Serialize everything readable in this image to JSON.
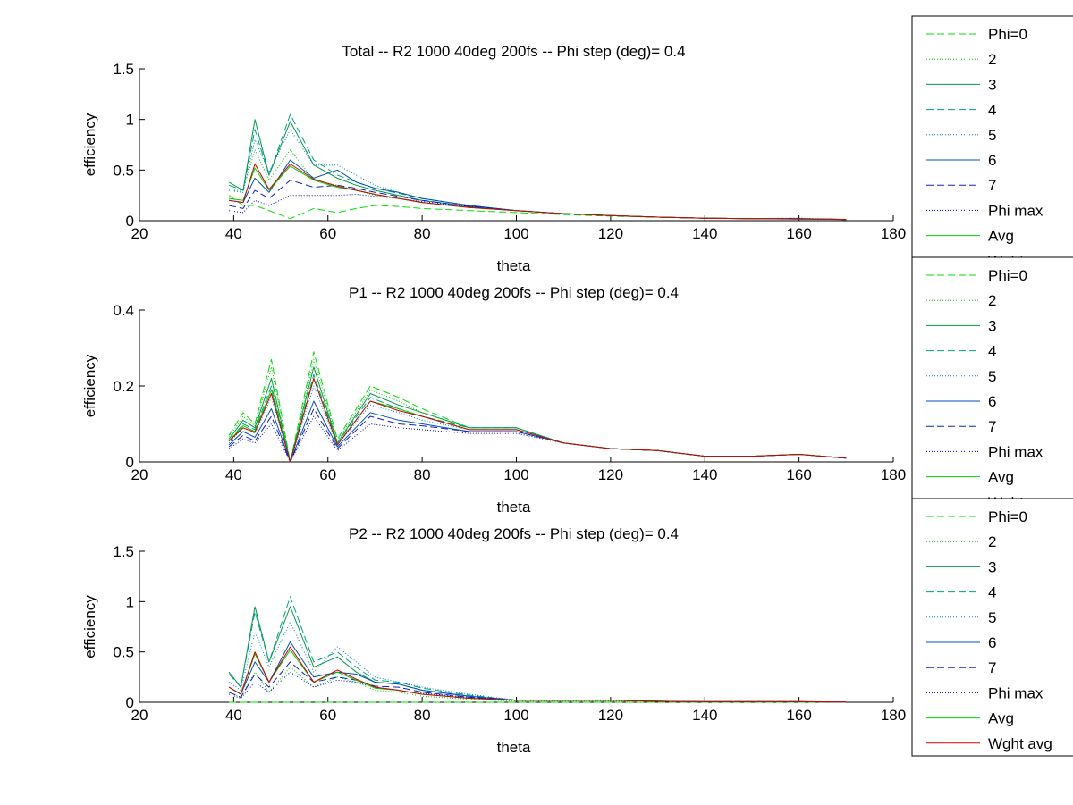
{
  "legend_entries": [
    {
      "label": "Phi=0",
      "color": "#00e000",
      "dash": "8 4"
    },
    {
      "label": "2",
      "color": "#00c000",
      "dash": "1 2"
    },
    {
      "label": "3",
      "color": "#009a40",
      "dash": ""
    },
    {
      "label": "4",
      "color": "#00a080",
      "dash": "8 4"
    },
    {
      "label": "5",
      "color": "#0080c0",
      "dash": "1 2"
    },
    {
      "label": "6",
      "color": "#0050c0",
      "dash": ""
    },
    {
      "label": "7",
      "color": "#1020c0",
      "dash": "8 4"
    },
    {
      "label": "Phi max",
      "color": "#0000d0",
      "dash": "1 2"
    },
    {
      "label": "Avg",
      "color": "#00d000",
      "dash": ""
    },
    {
      "label": "Wght avg",
      "color": "#d00000",
      "dash": ""
    }
  ],
  "chart_data": [
    {
      "type": "line",
      "title": "Total -- R2 1000 40deg 200fs -- Phi step (deg)= 0.4",
      "xlabel": "theta",
      "ylabel": "efficiency",
      "xlim": [
        20,
        180
      ],
      "ylim": [
        0,
        1.5
      ],
      "xticks": [
        "20",
        "40",
        "60",
        "80",
        "100",
        "120",
        "140",
        "160",
        "180"
      ],
      "yticks": [
        "0",
        "0.5",
        "1",
        "1.5"
      ],
      "grid": false,
      "legend_position": "outside-right",
      "x": [
        39,
        42,
        44.5,
        47.5,
        52,
        57,
        62,
        66,
        70,
        75,
        80,
        90,
        100,
        110,
        120,
        130,
        140,
        150,
        160,
        170
      ],
      "series": [
        {
          "name": "Phi=0",
          "values": [
            0.25,
            0.15,
            0.15,
            0.1,
            0.02,
            0.12,
            0.08,
            0.12,
            0.15,
            0.14,
            0.12,
            0.1,
            0.08,
            0.06,
            0.045,
            0.035,
            0.025,
            0.02,
            0.015,
            0.012
          ]
        },
        {
          "name": "2",
          "values": [
            0.3,
            0.3,
            0.7,
            0.4,
            0.7,
            0.4,
            0.35,
            0.3,
            0.25,
            0.22,
            0.18,
            0.13,
            0.1,
            0.07,
            0.05,
            0.035,
            0.025,
            0.02,
            0.018,
            0.012
          ]
        },
        {
          "name": "3",
          "values": [
            0.38,
            0.3,
            1.0,
            0.45,
            0.98,
            0.55,
            0.42,
            0.35,
            0.3,
            0.25,
            0.2,
            0.14,
            0.1,
            0.07,
            0.05,
            0.035,
            0.025,
            0.02,
            0.015,
            0.012
          ]
        },
        {
          "name": "4",
          "values": [
            0.35,
            0.3,
            0.9,
            0.45,
            1.05,
            0.6,
            0.45,
            0.38,
            0.32,
            0.27,
            0.22,
            0.15,
            0.1,
            0.07,
            0.05,
            0.035,
            0.025,
            0.02,
            0.02,
            0.012
          ]
        },
        {
          "name": "5",
          "values": [
            0.3,
            0.28,
            0.8,
            0.48,
            0.9,
            0.55,
            0.55,
            0.45,
            0.35,
            0.28,
            0.22,
            0.15,
            0.1,
            0.07,
            0.05,
            0.035,
            0.025,
            0.02,
            0.02,
            0.012
          ]
        },
        {
          "name": "6",
          "values": [
            0.2,
            0.18,
            0.42,
            0.28,
            0.6,
            0.42,
            0.5,
            0.38,
            0.32,
            0.28,
            0.22,
            0.15,
            0.1,
            0.07,
            0.05,
            0.035,
            0.025,
            0.02,
            0.02,
            0.012
          ]
        },
        {
          "name": "7",
          "values": [
            0.15,
            0.12,
            0.3,
            0.22,
            0.4,
            0.33,
            0.35,
            0.32,
            0.28,
            0.24,
            0.2,
            0.14,
            0.1,
            0.07,
            0.05,
            0.035,
            0.025,
            0.02,
            0.02,
            0.012
          ]
        },
        {
          "name": "Phi max",
          "values": [
            0.1,
            0.08,
            0.2,
            0.15,
            0.25,
            0.25,
            0.25,
            0.26,
            0.24,
            0.22,
            0.19,
            0.14,
            0.1,
            0.07,
            0.05,
            0.035,
            0.025,
            0.02,
            0.025,
            0.012
          ]
        },
        {
          "name": "Avg",
          "values": [
            0.22,
            0.2,
            0.52,
            0.3,
            0.54,
            0.4,
            0.33,
            0.3,
            0.26,
            0.22,
            0.18,
            0.13,
            0.1,
            0.07,
            0.05,
            0.035,
            0.025,
            0.02,
            0.018,
            0.012
          ]
        },
        {
          "name": "Wght avg",
          "values": [
            0.2,
            0.18,
            0.56,
            0.31,
            0.56,
            0.41,
            0.34,
            0.3,
            0.26,
            0.22,
            0.18,
            0.13,
            0.1,
            0.07,
            0.05,
            0.035,
            0.025,
            0.02,
            0.018,
            0.012
          ]
        }
      ]
    },
    {
      "type": "line",
      "title": "P1 -- R2 1000 40deg 200fs -- Phi step (deg)= 0.4",
      "xlabel": "theta",
      "ylabel": "efficiency",
      "xlim": [
        20,
        180
      ],
      "ylim": [
        0,
        0.4
      ],
      "xticks": [
        "20",
        "40",
        "60",
        "80",
        "100",
        "120",
        "140",
        "160",
        "180"
      ],
      "yticks": [
        "0",
        "0.2",
        "0.4"
      ],
      "grid": false,
      "legend_position": "outside-right",
      "x": [
        39,
        42,
        44.5,
        48,
        52,
        57,
        62,
        69,
        75,
        80,
        90,
        100,
        110,
        120,
        130,
        140,
        150,
        160,
        170
      ],
      "series": [
        {
          "name": "Phi=0",
          "values": [
            0.07,
            0.13,
            0.1,
            0.27,
            0.0,
            0.29,
            0.06,
            0.2,
            0.17,
            0.14,
            0.09,
            0.09,
            0.05,
            0.035,
            0.03,
            0.015,
            0.015,
            0.02,
            0.01
          ]
        },
        {
          "name": "2",
          "values": [
            0.065,
            0.12,
            0.095,
            0.25,
            0.0,
            0.27,
            0.055,
            0.19,
            0.16,
            0.13,
            0.09,
            0.09,
            0.05,
            0.035,
            0.03,
            0.015,
            0.015,
            0.02,
            0.01
          ]
        },
        {
          "name": "3",
          "values": [
            0.06,
            0.11,
            0.09,
            0.22,
            0.0,
            0.25,
            0.05,
            0.18,
            0.15,
            0.13,
            0.09,
            0.09,
            0.05,
            0.035,
            0.03,
            0.015,
            0.015,
            0.02,
            0.01
          ]
        },
        {
          "name": "4",
          "values": [
            0.055,
            0.1,
            0.085,
            0.2,
            0.0,
            0.23,
            0.05,
            0.17,
            0.14,
            0.12,
            0.09,
            0.09,
            0.05,
            0.035,
            0.03,
            0.015,
            0.015,
            0.02,
            0.01
          ]
        },
        {
          "name": "5",
          "values": [
            0.05,
            0.09,
            0.075,
            0.17,
            0.0,
            0.2,
            0.045,
            0.15,
            0.13,
            0.11,
            0.085,
            0.085,
            0.05,
            0.035,
            0.03,
            0.015,
            0.015,
            0.02,
            0.01
          ]
        },
        {
          "name": "6",
          "values": [
            0.045,
            0.08,
            0.065,
            0.14,
            0.0,
            0.16,
            0.04,
            0.13,
            0.11,
            0.1,
            0.08,
            0.08,
            0.05,
            0.035,
            0.03,
            0.015,
            0.015,
            0.02,
            0.01
          ]
        },
        {
          "name": "7",
          "values": [
            0.04,
            0.07,
            0.055,
            0.12,
            0.0,
            0.14,
            0.035,
            0.12,
            0.1,
            0.095,
            0.08,
            0.08,
            0.05,
            0.035,
            0.03,
            0.015,
            0.015,
            0.02,
            0.01
          ]
        },
        {
          "name": "Phi max",
          "values": [
            0.035,
            0.06,
            0.05,
            0.1,
            0.0,
            0.12,
            0.03,
            0.1,
            0.09,
            0.085,
            0.075,
            0.075,
            0.05,
            0.035,
            0.03,
            0.015,
            0.015,
            0.02,
            0.01
          ]
        },
        {
          "name": "Avg",
          "values": [
            0.055,
            0.095,
            0.08,
            0.19,
            0.0,
            0.22,
            0.045,
            0.16,
            0.14,
            0.12,
            0.085,
            0.085,
            0.05,
            0.035,
            0.03,
            0.015,
            0.015,
            0.02,
            0.01
          ]
        },
        {
          "name": "Wght avg",
          "values": [
            0.055,
            0.09,
            0.078,
            0.18,
            0.0,
            0.22,
            0.045,
            0.16,
            0.135,
            0.12,
            0.085,
            0.085,
            0.05,
            0.035,
            0.03,
            0.015,
            0.015,
            0.02,
            0.01
          ]
        }
      ]
    },
    {
      "type": "line",
      "title": "P2 -- R2 1000 40deg 200fs -- Phi step (deg)= 0.4",
      "xlabel": "theta",
      "ylabel": "efficiency",
      "xlim": [
        20,
        180
      ],
      "ylim": [
        0,
        1.5
      ],
      "xticks": [
        "20",
        "40",
        "60",
        "80",
        "100",
        "120",
        "140",
        "160",
        "180"
      ],
      "yticks": [
        "0",
        "0.5",
        "1",
        "1.5"
      ],
      "grid": false,
      "legend_position": "outside-right",
      "x": [
        39,
        41.5,
        44.5,
        47.5,
        52,
        57,
        62,
        66,
        70,
        75,
        80,
        90,
        100,
        110,
        120,
        130,
        140,
        150,
        160,
        170
      ],
      "series": [
        {
          "name": "Phi=0",
          "values": [
            0.0,
            0.0,
            0.0,
            0.0,
            0.0,
            0.0,
            0.0,
            0.0,
            0.0,
            0.0,
            0.0,
            0.0,
            0.0,
            0.0,
            0.0,
            0.0,
            0.0,
            0.0,
            0.0,
            0.0
          ]
        },
        {
          "name": "2",
          "values": [
            0.1,
            0.05,
            0.3,
            0.1,
            0.35,
            0.15,
            0.25,
            0.2,
            0.12,
            0.1,
            0.06,
            0.03,
            0.01,
            0.01,
            0.01,
            0.005,
            0.005,
            0.005,
            0.005,
            0.002
          ]
        },
        {
          "name": "3",
          "values": [
            0.3,
            0.15,
            0.95,
            0.4,
            0.95,
            0.35,
            0.45,
            0.3,
            0.2,
            0.18,
            0.12,
            0.06,
            0.02,
            0.02,
            0.02,
            0.01,
            0.005,
            0.005,
            0.005,
            0.002
          ]
        },
        {
          "name": "4",
          "values": [
            0.28,
            0.15,
            0.9,
            0.4,
            1.05,
            0.4,
            0.5,
            0.35,
            0.22,
            0.2,
            0.14,
            0.07,
            0.02,
            0.02,
            0.02,
            0.01,
            0.005,
            0.005,
            0.005,
            0.002
          ]
        },
        {
          "name": "5",
          "values": [
            0.2,
            0.12,
            0.7,
            0.35,
            0.8,
            0.3,
            0.55,
            0.4,
            0.25,
            0.2,
            0.15,
            0.08,
            0.02,
            0.02,
            0.02,
            0.01,
            0.005,
            0.005,
            0.005,
            0.002
          ]
        },
        {
          "name": "6",
          "values": [
            0.15,
            0.08,
            0.4,
            0.2,
            0.6,
            0.25,
            0.3,
            0.28,
            0.2,
            0.18,
            0.12,
            0.06,
            0.02,
            0.02,
            0.02,
            0.01,
            0.005,
            0.005,
            0.005,
            0.002
          ]
        },
        {
          "name": "7",
          "values": [
            0.1,
            0.05,
            0.28,
            0.15,
            0.4,
            0.2,
            0.25,
            0.22,
            0.16,
            0.15,
            0.1,
            0.05,
            0.02,
            0.02,
            0.02,
            0.01,
            0.005,
            0.005,
            0.005,
            0.002
          ]
        },
        {
          "name": "Phi max",
          "values": [
            0.08,
            0.04,
            0.2,
            0.1,
            0.3,
            0.15,
            0.22,
            0.2,
            0.15,
            0.12,
            0.09,
            0.05,
            0.02,
            0.02,
            0.02,
            0.01,
            0.005,
            0.005,
            0.005,
            0.002
          ]
        },
        {
          "name": "Avg",
          "values": [
            0.15,
            0.08,
            0.48,
            0.2,
            0.52,
            0.2,
            0.3,
            0.22,
            0.14,
            0.12,
            0.08,
            0.04,
            0.02,
            0.02,
            0.02,
            0.01,
            0.005,
            0.005,
            0.005,
            0.002
          ]
        },
        {
          "name": "Wght avg",
          "values": [
            0.15,
            0.08,
            0.5,
            0.2,
            0.55,
            0.2,
            0.32,
            0.23,
            0.15,
            0.12,
            0.08,
            0.04,
            0.02,
            0.02,
            0.02,
            0.01,
            0.005,
            0.005,
            0.005,
            0.002
          ]
        }
      ]
    }
  ]
}
